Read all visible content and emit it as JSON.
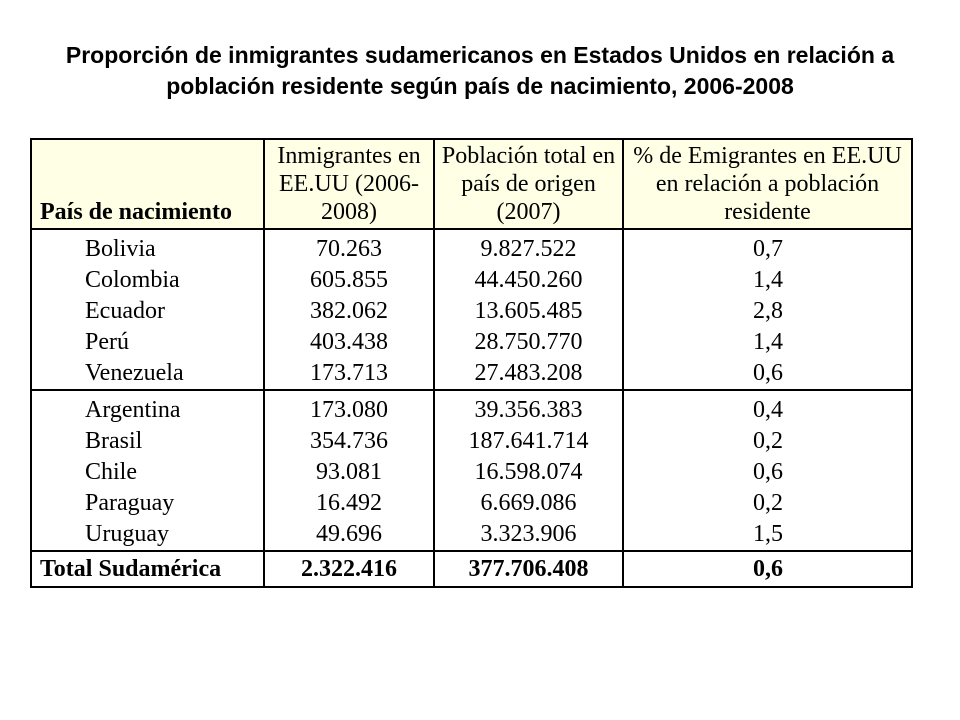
{
  "title": "Proporción de inmigrantes sudamericanos en Estados Unidos en relación a población residente según país de nacimiento, 2006-2008",
  "table": {
    "headers": [
      "País de nacimiento",
      "Inmigrantes en EE.UU (2006-2008)",
      "Población total en país de origen (2007)",
      "% de Emigrantes en EE.UU en relación a población residente"
    ],
    "group1": [
      {
        "country": "Bolivia",
        "immigrants": "70.263",
        "population": "9.827.522",
        "percent": "0,7"
      },
      {
        "country": "Colombia",
        "immigrants": "605.855",
        "population": "44.450.260",
        "percent": "1,4"
      },
      {
        "country": "Ecuador",
        "immigrants": "382.062",
        "population": "13.605.485",
        "percent": "2,8"
      },
      {
        "country": "Perú",
        "immigrants": "403.438",
        "population": "28.750.770",
        "percent": "1,4"
      },
      {
        "country": "Venezuela",
        "immigrants": "173.713",
        "population": "27.483.208",
        "percent": "0,6"
      }
    ],
    "group2": [
      {
        "country": "Argentina",
        "immigrants": "173.080",
        "population": "39.356.383",
        "percent": "0,4"
      },
      {
        "country": "Brasil",
        "immigrants": "354.736",
        "population": "187.641.714",
        "percent": "0,2"
      },
      {
        "country": "Chile",
        "immigrants": "93.081",
        "population": "16.598.074",
        "percent": "0,6"
      },
      {
        "country": "Paraguay",
        "immigrants": "16.492",
        "population": "6.669.086",
        "percent": "0,2"
      },
      {
        "country": "Uruguay",
        "immigrants": "49.696",
        "population": "3.323.906",
        "percent": "1,5"
      }
    ],
    "total": {
      "country": "Total Sudamérica",
      "immigrants": "2.322.416",
      "population": "377.706.408",
      "percent": "0,6"
    }
  }
}
